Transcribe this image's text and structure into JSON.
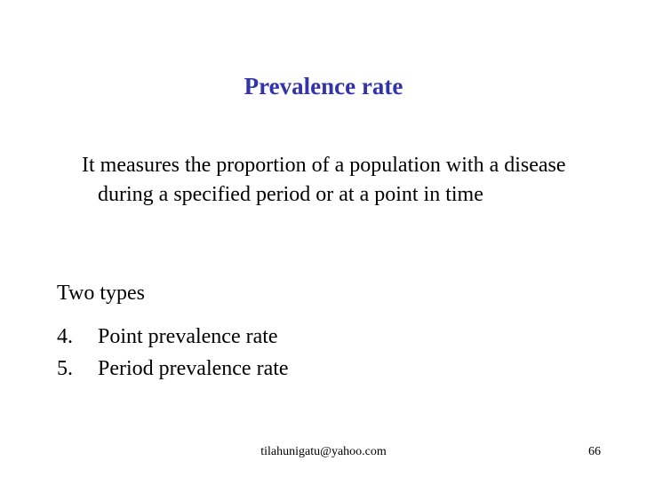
{
  "slide": {
    "title": "Prevalence rate",
    "definition": "It measures the proportion of a population with a disease during a specified period or at a point in time",
    "types_heading": "Two types",
    "types": [
      {
        "number": "4.",
        "label": "Point prevalence rate"
      },
      {
        "number": "5.",
        "label": "Period prevalence rate"
      }
    ]
  },
  "footer": {
    "email": "tilahunigatu@yahoo.com",
    "page_number": "66"
  },
  "colors": {
    "title": "#3333aa",
    "text": "#000000",
    "background": "#ffffff"
  }
}
